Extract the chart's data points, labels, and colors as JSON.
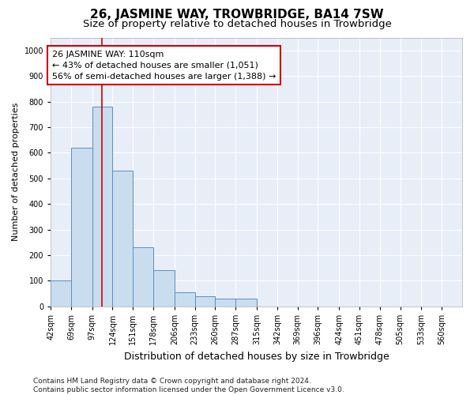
{
  "title": "26, JASMINE WAY, TROWBRIDGE, BA14 7SW",
  "subtitle": "Size of property relative to detached houses in Trowbridge",
  "xlabel": "Distribution of detached houses by size in Trowbridge",
  "ylabel": "Number of detached properties",
  "bar_edges": [
    42,
    69,
    97,
    124,
    151,
    178,
    206,
    233,
    260,
    287,
    315,
    342,
    369,
    396,
    424,
    451,
    478,
    505,
    533,
    560,
    587
  ],
  "bar_heights": [
    100,
    620,
    780,
    530,
    230,
    140,
    55,
    40,
    30,
    30,
    0,
    0,
    0,
    0,
    0,
    0,
    0,
    0,
    0,
    0
  ],
  "bar_color": "#c9ddef",
  "bar_edge_color": "#5a8fc2",
  "property_size": 110,
  "property_line_color": "#cc0000",
  "annotation_text": "26 JASMINE WAY: 110sqm\n← 43% of detached houses are smaller (1,051)\n56% of semi-detached houses are larger (1,388) →",
  "annotation_box_facecolor": "#ffffff",
  "annotation_box_edgecolor": "#cc0000",
  "ylim": [
    0,
    1050
  ],
  "yticks": [
    0,
    100,
    200,
    300,
    400,
    500,
    600,
    700,
    800,
    900,
    1000
  ],
  "background_color": "#e8eef8",
  "grid_color": "#ffffff",
  "footnote": "Contains HM Land Registry data © Crown copyright and database right 2024.\nContains public sector information licensed under the Open Government Licence v3.0.",
  "title_fontsize": 11,
  "subtitle_fontsize": 9.5,
  "xlabel_fontsize": 9,
  "ylabel_fontsize": 8,
  "tick_fontsize": 7,
  "annotation_fontsize": 8,
  "footnote_fontsize": 6.5
}
